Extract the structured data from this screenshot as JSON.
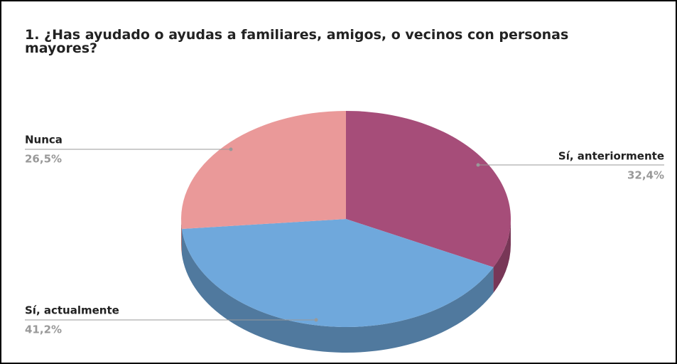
{
  "chart_data": {
    "type": "pie3d",
    "title": "1. ¿Has ayudado o ayudas a familiares, amigos, o vecinos con personas mayores?",
    "categories": [
      "Sí, anteriormente",
      "Sí, actualmente",
      "Nunca"
    ],
    "values": [
      32.4,
      41.2,
      26.5
    ],
    "value_labels": [
      "32,4%",
      "41,2%",
      "26,5%"
    ],
    "colors": [
      "#a64d79",
      "#6fa8dc",
      "#ea9999"
    ]
  }
}
